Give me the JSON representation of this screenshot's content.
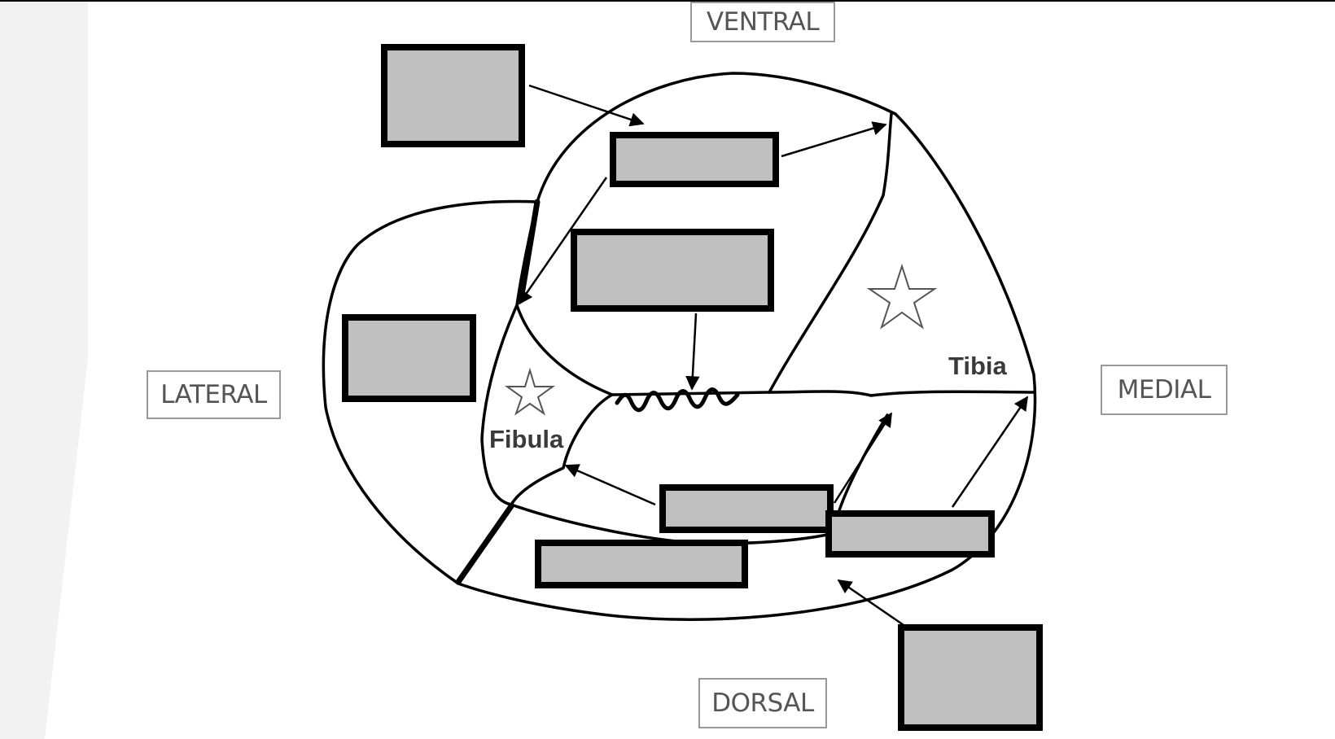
{
  "orientation": {
    "ventral": "VENTRAL",
    "lateral": "LATERAL",
    "medial": "MEDIAL",
    "dorsal": "DORSAL"
  },
  "bones": {
    "tibia": "Tibia",
    "fibula": "Fibula"
  },
  "answer_boxes": [
    "",
    "",
    "",
    "",
    "",
    "",
    "",
    "",
    ""
  ],
  "colors": {
    "line": "#000000",
    "box_fill": "#c0c0c0",
    "box_border": "#000000",
    "frame_shade": "#f2f2f2",
    "label_border": "#9a9a9a"
  }
}
